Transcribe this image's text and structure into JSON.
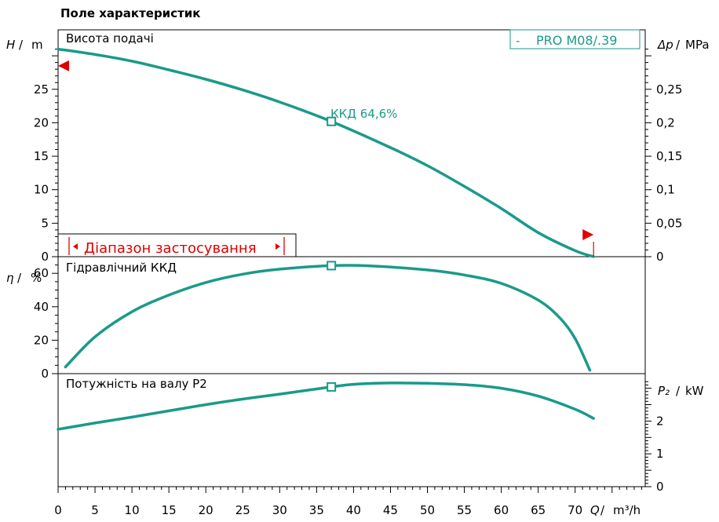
{
  "page": {
    "title": "Поле характеристик"
  },
  "colors": {
    "curve": "#1a9a8a",
    "range": "#e00000",
    "axis": "#000000"
  },
  "chart_data": [
    {
      "type": "line",
      "panel": "head",
      "title": "Висота подачі",
      "ylabel_main": "H",
      "ylabel_unit": "m",
      "y2label_main": "Δp",
      "y2label_unit": "MPa",
      "ylim": [
        0,
        31
      ],
      "y2lim": [
        0,
        0.31
      ],
      "yticks": [
        "0",
        "5",
        "10",
        "15",
        "20",
        "25"
      ],
      "yticks_values": [
        0,
        5,
        10,
        15,
        20,
        25
      ],
      "y2ticks": [
        "0",
        "0,05",
        "0,1",
        "0,15",
        "0,2",
        "0,25"
      ],
      "y2ticks_values": [
        0,
        0.05,
        0.1,
        0.15,
        0.2,
        0.25
      ],
      "legend": "PRO M08/.39",
      "legend_prefix": "-",
      "series": [
        {
          "name": "PRO M08/.39",
          "x": [
            0,
            5,
            10,
            15,
            20,
            25,
            30,
            37,
            45,
            50,
            55,
            60,
            65,
            70,
            72.5
          ],
          "y": [
            31.0,
            30.2,
            29.2,
            27.9,
            26.5,
            24.9,
            23.1,
            20.2,
            16.3,
            13.6,
            10.5,
            7.2,
            3.6,
            0.9,
            0
          ]
        }
      ],
      "duty_point": {
        "x": 37,
        "y": 20.2,
        "label": "ККД  64,6%"
      },
      "application_range": {
        "label": "Діапазон застосування",
        "x_from": 2,
        "x_to": 38
      },
      "markers": [
        {
          "axis": "left",
          "y": 28.5
        },
        {
          "axis": "bottom-right",
          "x": 72.5
        }
      ]
    },
    {
      "type": "line",
      "panel": "efficiency",
      "title": "Гідравлічний ККД",
      "ylabel_main": "η",
      "ylabel_unit": "%",
      "ylim": [
        0,
        65
      ],
      "yticks": [
        "0",
        "20",
        "40",
        "60"
      ],
      "yticks_values": [
        0,
        20,
        40,
        60
      ],
      "series": [
        {
          "name": "PRO M08/.39",
          "x": [
            1,
            5,
            10,
            15,
            20,
            25,
            30,
            37,
            42,
            50,
            55,
            60,
            65,
            68,
            70,
            72
          ],
          "y": [
            4,
            22,
            37,
            47,
            54.5,
            59.5,
            62.5,
            64.6,
            64.5,
            62,
            59,
            54,
            44,
            33,
            21,
            2
          ]
        }
      ],
      "duty_point": {
        "x": 37,
        "y": 64.6
      }
    },
    {
      "type": "line",
      "panel": "power",
      "title": "Потужність на валу P2",
      "y2label_main": "P₂",
      "y2label_unit": "kW",
      "y2lim": [
        0,
        3.2
      ],
      "y2ticks": [
        "0",
        "1",
        "2"
      ],
      "y2ticks_values": [
        0,
        1,
        2
      ],
      "series": [
        {
          "name": "PRO M08/.39",
          "x": [
            0,
            5,
            10,
            15,
            20,
            25,
            30,
            37,
            40,
            45,
            50,
            55,
            60,
            65,
            70,
            72.5
          ],
          "y": [
            1.75,
            1.94,
            2.12,
            2.31,
            2.5,
            2.67,
            2.82,
            3.04,
            3.12,
            3.16,
            3.15,
            3.11,
            3.0,
            2.76,
            2.36,
            2.08
          ]
        }
      ],
      "duty_point": {
        "x": 37,
        "y": 3.04
      }
    }
  ],
  "x_axis": {
    "label_main": "Q",
    "label_unit": "m³/h",
    "xlim": [
      0,
      80
    ],
    "ticks": [
      "0",
      "5",
      "10",
      "15",
      "20",
      "25",
      "30",
      "35",
      "40",
      "45",
      "50",
      "55",
      "60",
      "65",
      "70"
    ],
    "tick_values": [
      0,
      5,
      10,
      15,
      20,
      25,
      30,
      35,
      40,
      45,
      50,
      55,
      60,
      65,
      70
    ]
  }
}
